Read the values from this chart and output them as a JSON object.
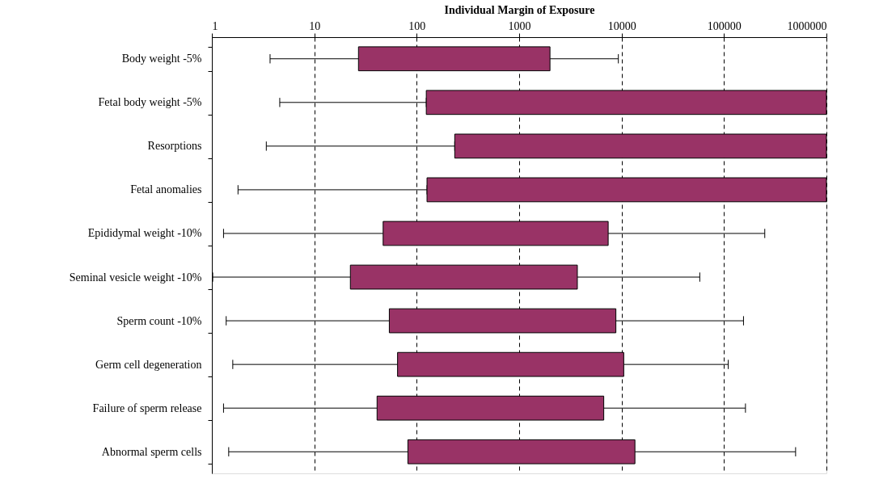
{
  "chart_data": {
    "type": "bar",
    "orientation": "horizontal",
    "xlabel": "Individual Margin of Exposure",
    "categories": [
      "Body weight -5%",
      "Fetal body weight -5%",
      "Resorptions",
      "Fetal anomalies",
      "Epididymal weight -10%",
      "Seminal vesicle weight -10%",
      "Sperm count -10%",
      "Germ cell degeneration",
      "Failure of sperm release",
      "Abnormal sperm cells"
    ],
    "base": [
      27,
      124,
      235,
      126,
      47,
      22.5,
      54,
      65,
      41,
      82
    ],
    "values": [
      1973,
      999876,
      999765,
      999874,
      7353,
      3677.5,
      8746,
      10435,
      6659,
      13418
    ],
    "errors": [
      [
        3.7,
        9300
      ],
      [
        4.6,
        124
      ],
      [
        3.4,
        235
      ],
      [
        1.8,
        126
      ],
      [
        1.3,
        250000
      ],
      [
        1.02,
        58000
      ],
      [
        1.38,
        155000
      ],
      [
        1.6,
        110000
      ],
      [
        1.3,
        162000
      ],
      [
        1.46,
        500000
      ]
    ],
    "color": "#993366",
    "log": "x",
    "xlim": [
      1,
      1000000
    ],
    "xticks": [
      1,
      10,
      100,
      1000,
      10000,
      100000,
      1000000
    ],
    "grid": "x"
  }
}
